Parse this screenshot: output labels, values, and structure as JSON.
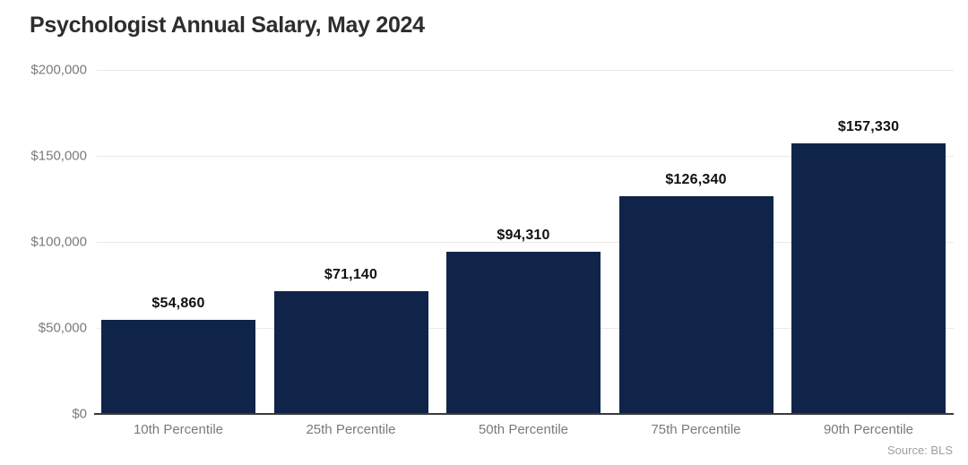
{
  "header": {
    "title": "Psychologist Annual Salary, May 2024"
  },
  "footer": {
    "source_label": "Source: BLS"
  },
  "colors": {
    "background": "#ffffff",
    "bar": "#0f2448",
    "title": "#2d2d2d",
    "axis_label": "#7a7a7a",
    "value_label": "#111111",
    "gridline": "#e9e9e9",
    "baseline": "#3a3a3a",
    "source_label": "#9aa0a6"
  },
  "chart_data": {
    "type": "bar",
    "title": "Psychologist Annual Salary, May 2024",
    "categories": [
      "10th Percentile",
      "25th Percentile",
      "50th Percentile",
      "75th Percentile",
      "90th Percentile"
    ],
    "values": [
      54860,
      71140,
      94310,
      126340,
      157330
    ],
    "value_labels": [
      "$54,860",
      "$71,140",
      "$94,310",
      "$126,340",
      "$157,330"
    ],
    "xlabel": "",
    "ylabel": "",
    "ylim": [
      0,
      200000
    ],
    "yticks": [
      {
        "value": 0,
        "label": "$0"
      },
      {
        "value": 50000,
        "label": "$50,000"
      },
      {
        "value": 100000,
        "label": "$100,000"
      },
      {
        "value": 150000,
        "label": "$150,000"
      },
      {
        "value": 200000,
        "label": "$200,000"
      }
    ],
    "grid": "horizontal",
    "legend": "none",
    "source": "Source: BLS"
  }
}
